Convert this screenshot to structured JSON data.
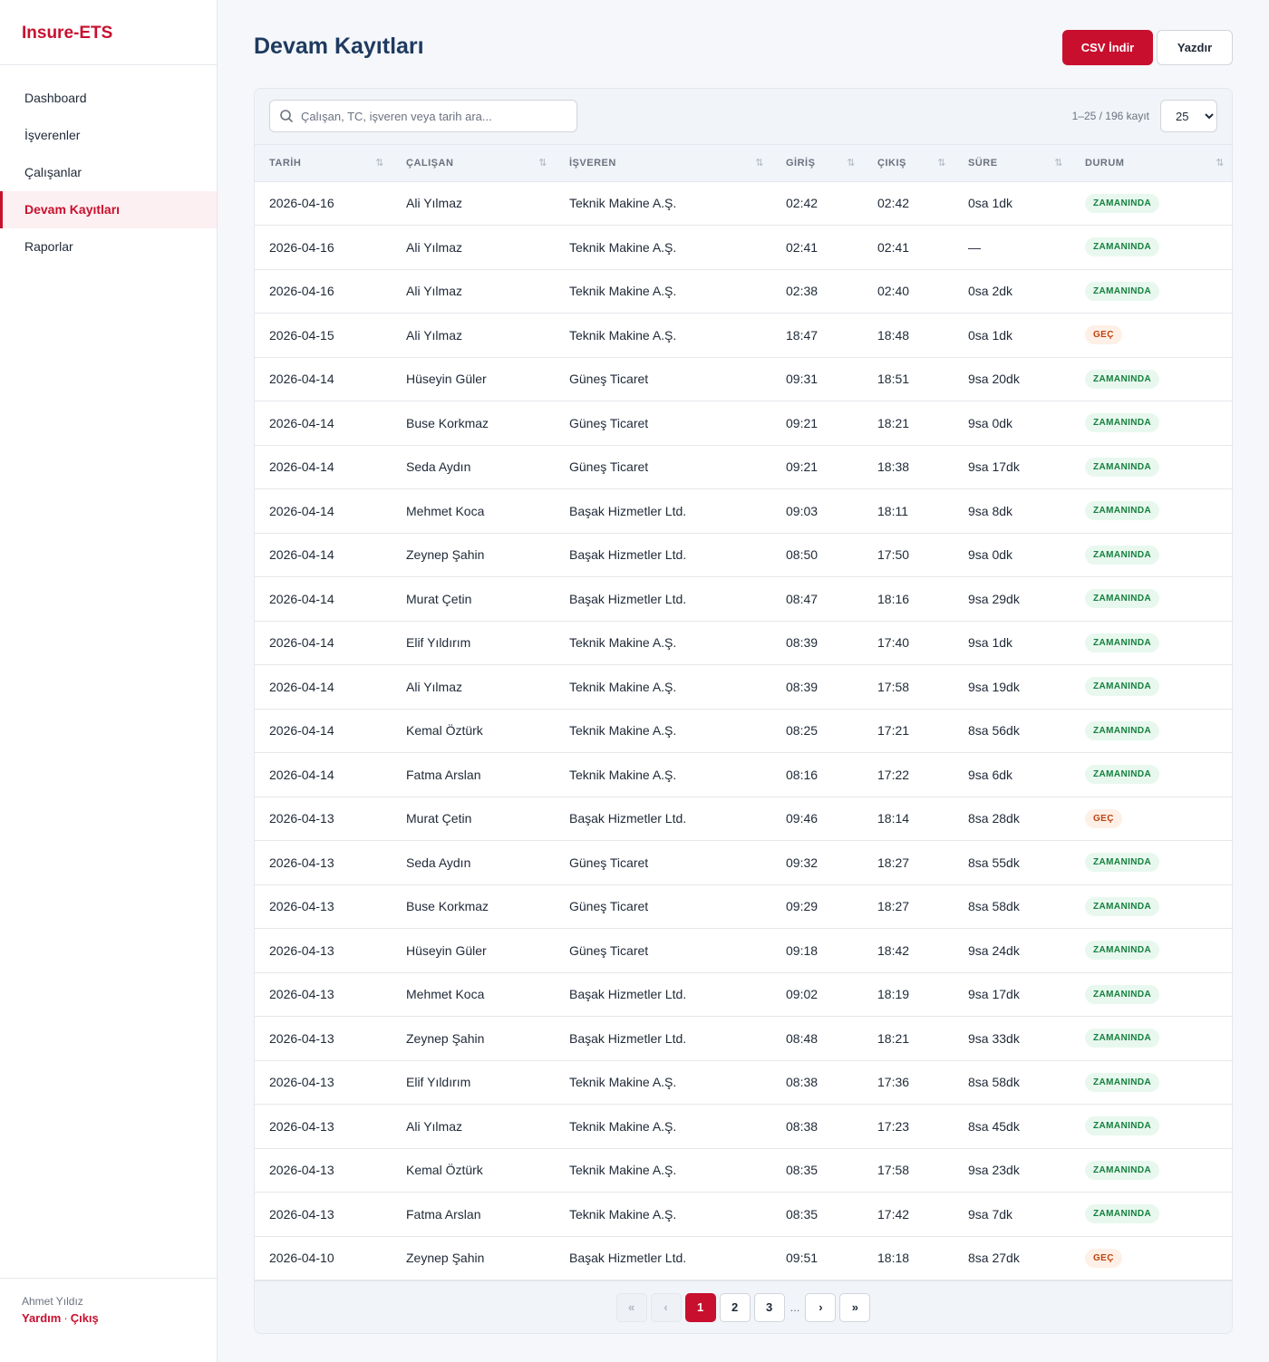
{
  "app": {
    "brand": "Insure-ETS"
  },
  "sidebar": {
    "items": [
      {
        "label": "Dashboard",
        "active": false
      },
      {
        "label": "İşverenler",
        "active": false
      },
      {
        "label": "Çalışanlar",
        "active": false
      },
      {
        "label": "Devam Kayıtları",
        "active": true
      },
      {
        "label": "Raporlar",
        "active": false
      }
    ],
    "user_name": "Ahmet Yıldız",
    "help_label": "Yardım",
    "separator": "·",
    "logout_label": "Çıkış"
  },
  "header": {
    "title": "Devam Kayıtları",
    "csv_label": "CSV İndir",
    "print_label": "Yazdır"
  },
  "toolbar": {
    "search_placeholder": "Çalışan, TC, işveren veya tarih ara...",
    "record_count": "1–25 / 196 kayıt",
    "page_size": "25",
    "page_size_options": [
      "25"
    ]
  },
  "table": {
    "columns": [
      "TARİH",
      "ÇALIŞAN",
      "İŞVEREN",
      "GİRİŞ",
      "ÇIKIŞ",
      "SÜRE",
      "DURUM"
    ],
    "sort_icon": "⇅",
    "rows": [
      [
        "2026-04-16",
        "Ali Yılmaz",
        "Teknik Makine A.Ş.",
        "02:42",
        "02:42",
        "0sa 1dk",
        "ZAMANINDA"
      ],
      [
        "2026-04-16",
        "Ali Yılmaz",
        "Teknik Makine A.Ş.",
        "02:41",
        "02:41",
        "—",
        "ZAMANINDA"
      ],
      [
        "2026-04-16",
        "Ali Yılmaz",
        "Teknik Makine A.Ş.",
        "02:38",
        "02:40",
        "0sa 2dk",
        "ZAMANINDA"
      ],
      [
        "2026-04-15",
        "Ali Yılmaz",
        "Teknik Makine A.Ş.",
        "18:47",
        "18:48",
        "0sa 1dk",
        "GEÇ"
      ],
      [
        "2026-04-14",
        "Hüseyin Güler",
        "Güneş Ticaret",
        "09:31",
        "18:51",
        "9sa 20dk",
        "ZAMANINDA"
      ],
      [
        "2026-04-14",
        "Buse Korkmaz",
        "Güneş Ticaret",
        "09:21",
        "18:21",
        "9sa 0dk",
        "ZAMANINDA"
      ],
      [
        "2026-04-14",
        "Seda Aydın",
        "Güneş Ticaret",
        "09:21",
        "18:38",
        "9sa 17dk",
        "ZAMANINDA"
      ],
      [
        "2026-04-14",
        "Mehmet Koca",
        "Başak Hizmetler Ltd.",
        "09:03",
        "18:11",
        "9sa 8dk",
        "ZAMANINDA"
      ],
      [
        "2026-04-14",
        "Zeynep Şahin",
        "Başak Hizmetler Ltd.",
        "08:50",
        "17:50",
        "9sa 0dk",
        "ZAMANINDA"
      ],
      [
        "2026-04-14",
        "Murat Çetin",
        "Başak Hizmetler Ltd.",
        "08:47",
        "18:16",
        "9sa 29dk",
        "ZAMANINDA"
      ],
      [
        "2026-04-14",
        "Elif Yıldırım",
        "Teknik Makine A.Ş.",
        "08:39",
        "17:40",
        "9sa 1dk",
        "ZAMANINDA"
      ],
      [
        "2026-04-14",
        "Ali Yılmaz",
        "Teknik Makine A.Ş.",
        "08:39",
        "17:58",
        "9sa 19dk",
        "ZAMANINDA"
      ],
      [
        "2026-04-14",
        "Kemal Öztürk",
        "Teknik Makine A.Ş.",
        "08:25",
        "17:21",
        "8sa 56dk",
        "ZAMANINDA"
      ],
      [
        "2026-04-14",
        "Fatma Arslan",
        "Teknik Makine A.Ş.",
        "08:16",
        "17:22",
        "9sa 6dk",
        "ZAMANINDA"
      ],
      [
        "2026-04-13",
        "Murat Çetin",
        "Başak Hizmetler Ltd.",
        "09:46",
        "18:14",
        "8sa 28dk",
        "GEÇ"
      ],
      [
        "2026-04-13",
        "Seda Aydın",
        "Güneş Ticaret",
        "09:32",
        "18:27",
        "8sa 55dk",
        "ZAMANINDA"
      ],
      [
        "2026-04-13",
        "Buse Korkmaz",
        "Güneş Ticaret",
        "09:29",
        "18:27",
        "8sa 58dk",
        "ZAMANINDA"
      ],
      [
        "2026-04-13",
        "Hüseyin Güler",
        "Güneş Ticaret",
        "09:18",
        "18:42",
        "9sa 24dk",
        "ZAMANINDA"
      ],
      [
        "2026-04-13",
        "Mehmet Koca",
        "Başak Hizmetler Ltd.",
        "09:02",
        "18:19",
        "9sa 17dk",
        "ZAMANINDA"
      ],
      [
        "2026-04-13",
        "Zeynep Şahin",
        "Başak Hizmetler Ltd.",
        "08:48",
        "18:21",
        "9sa 33dk",
        "ZAMANINDA"
      ],
      [
        "2026-04-13",
        "Elif Yıldırım",
        "Teknik Makine A.Ş.",
        "08:38",
        "17:36",
        "8sa 58dk",
        "ZAMANINDA"
      ],
      [
        "2026-04-13",
        "Ali Yılmaz",
        "Teknik Makine A.Ş.",
        "08:38",
        "17:23",
        "8sa 45dk",
        "ZAMANINDA"
      ],
      [
        "2026-04-13",
        "Kemal Öztürk",
        "Teknik Makine A.Ş.",
        "08:35",
        "17:58",
        "9sa 23dk",
        "ZAMANINDA"
      ],
      [
        "2026-04-13",
        "Fatma Arslan",
        "Teknik Makine A.Ş.",
        "08:35",
        "17:42",
        "9sa 7dk",
        "ZAMANINDA"
      ],
      [
        "2026-04-10",
        "Zeynep Şahin",
        "Başak Hizmetler Ltd.",
        "09:51",
        "18:18",
        "8sa 27dk",
        "GEÇ"
      ]
    ]
  },
  "pagination": {
    "first": "«",
    "prev": "‹",
    "pages": [
      "1",
      "2",
      "3"
    ],
    "current": "1",
    "ellipsis": "...",
    "next": "›",
    "last": "»"
  },
  "colors": {
    "brand": "#c8102e",
    "title": "#1e3a5f",
    "status_ok_bg": "#e8f8ef",
    "status_ok_text": "#15803d",
    "status_late_bg": "#fef0e6",
    "status_late_text": "#c2410c"
  }
}
